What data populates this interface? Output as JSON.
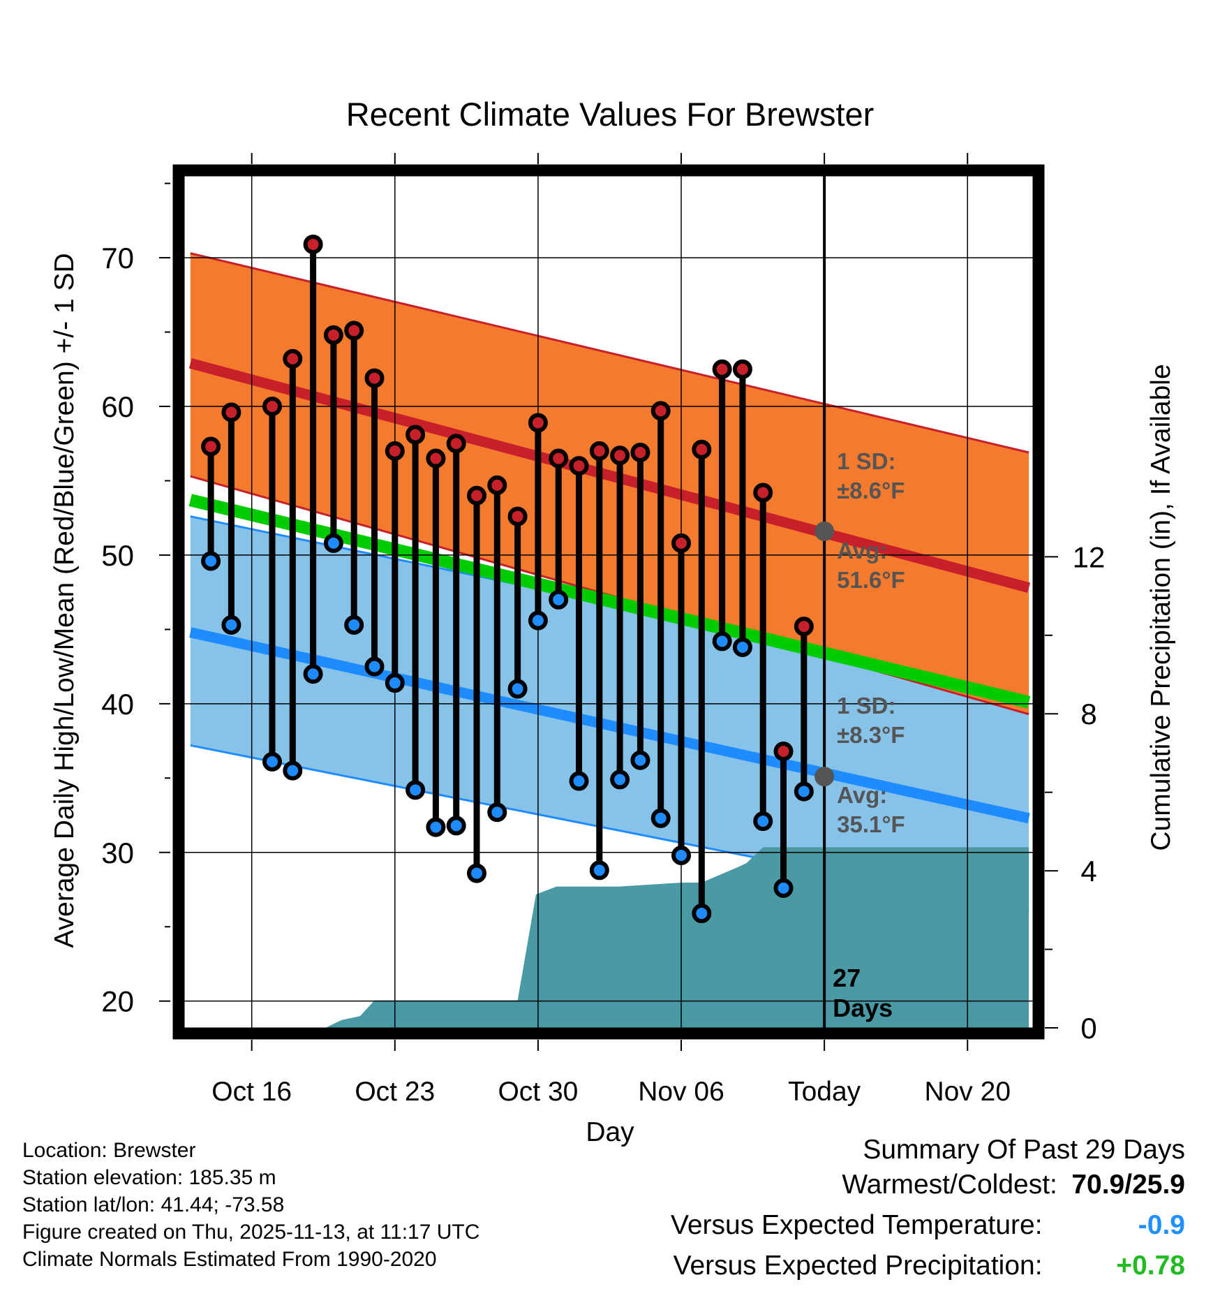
{
  "chart_data": {
    "type": "line",
    "title": "Recent Climate Values For Brewster",
    "xlabel": "Day",
    "ylabel": "Average Daily High/Low/Mean (Red/Blue/Green) +/- 1 SD",
    "y2label": "Cumulative Precipitation (in), If Available",
    "ylim": [
      18.2,
      75.5
    ],
    "y2lim": [
      0,
      21.7
    ],
    "xlim": [
      -1.3,
      40.2
    ],
    "yticks": [
      20,
      30,
      40,
      50,
      60,
      70
    ],
    "y2ticks": [
      0,
      4,
      8,
      12
    ],
    "xticks": [
      {
        "day": 2,
        "label": "Oct 16"
      },
      {
        "day": 9,
        "label": "Oct 23"
      },
      {
        "day": 16,
        "label": "Oct 30"
      },
      {
        "day": 23,
        "label": "Nov 06"
      },
      {
        "day": 30,
        "label": "Today"
      },
      {
        "day": 37,
        "label": "Nov 20"
      }
    ],
    "today_day": 30,
    "days_label_number": "27",
    "days_label_word": "Days",
    "normals": {
      "days": [
        -1,
        40
      ],
      "high_avg": [
        62.9,
        47.8
      ],
      "high_upper": [
        70.3,
        56.9
      ],
      "high_lower": [
        55.3,
        39.3
      ],
      "low_avg": [
        44.8,
        32.3
      ],
      "low_upper": [
        52.6,
        40.9
      ],
      "low_lower": [
        37.2,
        26.0
      ],
      "mean_avg": [
        53.7,
        40.1
      ]
    },
    "annotations": {
      "high_sd_label": "1 SD:",
      "high_sd_value": "±8.6°F",
      "high_avg_label": "Avg:",
      "high_avg_value": "51.6°F",
      "high_avg_marker": 51.6,
      "low_sd_label": "1 SD:",
      "low_sd_value": "±8.3°F",
      "low_avg_label": "Avg:",
      "low_avg_value": "35.1°F",
      "low_avg_marker": 35.1
    },
    "observations": [
      {
        "day": 0,
        "high": 57.3,
        "low": 49.6
      },
      {
        "day": 1,
        "high": 59.6,
        "low": 45.3
      },
      {
        "day": 3,
        "high": 60.0,
        "low": 36.1
      },
      {
        "day": 4,
        "high": 63.2,
        "low": 35.5
      },
      {
        "day": 5,
        "high": 70.9,
        "low": 42.0
      },
      {
        "day": 6,
        "high": 64.8,
        "low": 50.8
      },
      {
        "day": 7,
        "high": 65.1,
        "low": 45.3
      },
      {
        "day": 8,
        "high": 61.9,
        "low": 42.5
      },
      {
        "day": 9,
        "high": 57.0,
        "low": 41.4
      },
      {
        "day": 10,
        "high": 58.1,
        "low": 34.2
      },
      {
        "day": 11,
        "high": 56.5,
        "low": 31.7
      },
      {
        "day": 12,
        "high": 57.5,
        "low": 31.8
      },
      {
        "day": 13,
        "high": 54.0,
        "low": 28.6
      },
      {
        "day": 14,
        "high": 54.7,
        "low": 32.7
      },
      {
        "day": 15,
        "high": 52.6,
        "low": 41.0
      },
      {
        "day": 16,
        "high": 58.9,
        "low": 45.6
      },
      {
        "day": 17,
        "high": 56.5,
        "low": 47.0
      },
      {
        "day": 18,
        "high": 56.0,
        "low": 34.8
      },
      {
        "day": 19,
        "high": 57.0,
        "low": 28.8
      },
      {
        "day": 20,
        "high": 56.7,
        "low": 34.9
      },
      {
        "day": 21,
        "high": 56.9,
        "low": 36.2
      },
      {
        "day": 22,
        "high": 59.7,
        "low": 32.3
      },
      {
        "day": 23,
        "high": 50.8,
        "low": 29.8
      },
      {
        "day": 24,
        "high": 57.1,
        "low": 25.9
      },
      {
        "day": 25,
        "high": 62.5,
        "low": 44.2
      },
      {
        "day": 26,
        "high": 62.5,
        "low": 43.8
      },
      {
        "day": 27,
        "high": 54.2,
        "low": 32.1
      },
      {
        "day": 28,
        "high": 36.8,
        "low": 27.6
      },
      {
        "day": 29,
        "high": 45.2,
        "low": 34.1
      }
    ],
    "precipitation": {
      "days": [
        -1,
        5.6,
        6.4,
        7.3,
        8.0,
        15.0,
        15.9,
        16.9,
        20.0,
        23.0,
        24.0,
        25.8,
        26.2,
        27.0,
        28.0,
        29.5,
        40
      ],
      "values": [
        0,
        0,
        0.2,
        0.3,
        0.7,
        0.7,
        3.4,
        3.6,
        3.6,
        3.7,
        3.7,
        4.1,
        4.2,
        4.6,
        4.6,
        4.6,
        4.6
      ]
    },
    "colors": {
      "high": "#c8202a",
      "high_band": "#f47a2e",
      "low": "#1e8cff",
      "low_band": "#87c2e8",
      "mean": "#00cc00",
      "precip": "#4a9aa5",
      "annotation": "#555555"
    }
  },
  "footer": {
    "location": "Location: Brewster",
    "elevation": "Station elevation: 185.35 m",
    "latlon": "Station lat/lon: 41.44; -73.58",
    "created": "Figure created on Thu, 2025-11-13, at 11:17 UTC",
    "normals": "Climate Normals Estimated From 1990-2020"
  },
  "summary": {
    "title": "Summary Of Past 29 Days",
    "warm_cold_label": "Warmest/Coldest:",
    "warm_cold_value": "70.9/25.9",
    "temp_label": "Versus Expected Temperature:",
    "temp_value": "-0.9",
    "temp_color": "#1e90ff",
    "precip_label": "Versus Expected Precipitation:",
    "precip_value": "+0.78",
    "precip_color": "#22bb22"
  }
}
